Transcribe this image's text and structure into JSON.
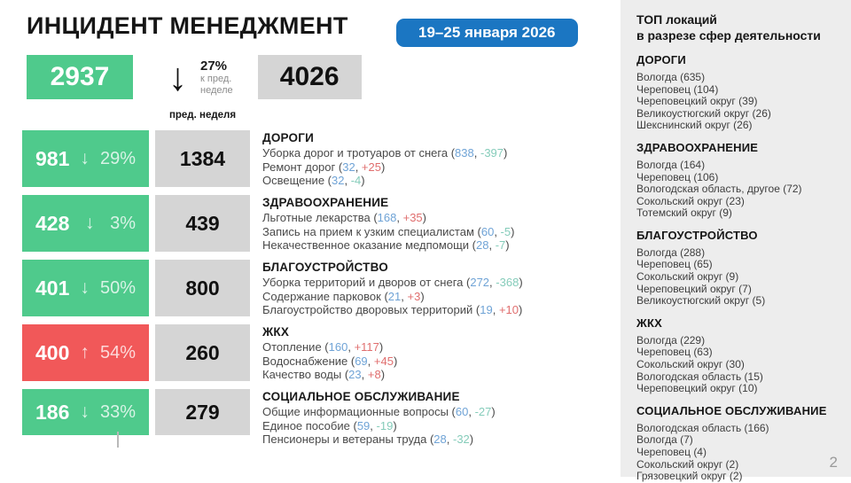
{
  "header": {
    "title": "ИНЦИДЕНТ МЕНЕДЖМЕНТ",
    "date_badge": "19–25 января 2026",
    "total_current": "2937",
    "total_direction": "down",
    "total_change_pct": "27%",
    "total_change_caption_line1": "к пред.",
    "total_change_caption_line2": "неделе",
    "total_prev": "4026",
    "prev_week_label": "пред. неделя"
  },
  "colors": {
    "accent_green": "#4fca8c",
    "accent_red": "#f15859",
    "prev_box_gray": "#d5d5d5",
    "badge_blue": "#1b76c2",
    "value_blue": "#6fa3d6",
    "delta_up_red": "#e06e6e",
    "delta_down_teal": "#85ccba",
    "sidebar_bg": "#ededed"
  },
  "categories": [
    {
      "name": "ДОРОГИ",
      "current": "981",
      "direction": "down",
      "pct": "29%",
      "prev": "1384",
      "items": [
        {
          "label": "Уборка дорог и тротуаров от снега",
          "value": "838",
          "delta": "-397"
        },
        {
          "label": "Ремонт дорог",
          "value": "32",
          "delta": "+25"
        },
        {
          "label": "Освещение",
          "value": "32",
          "delta": "-4"
        }
      ]
    },
    {
      "name": "ЗДРАВООХРАНЕНИЕ",
      "current": "428",
      "direction": "down",
      "pct": "3%",
      "prev": "439",
      "items": [
        {
          "label": "Льготные лекарства",
          "value": "168",
          "delta": "+35"
        },
        {
          "label": "Запись на прием к узким специалистам",
          "value": "60",
          "delta": "-5"
        },
        {
          "label": "Некачественное оказание медпомощи",
          "value": "28",
          "delta": "-7"
        }
      ]
    },
    {
      "name": "БЛАГОУСТРОЙСТВО",
      "current": "401",
      "direction": "down",
      "pct": "50%",
      "prev": "800",
      "items": [
        {
          "label": "Уборка территорий и дворов от снега",
          "value": "272",
          "delta": "-368"
        },
        {
          "label": "Содержание парковок",
          "value": "21",
          "delta": "+3"
        },
        {
          "label": "Благоустройство дворовых территорий",
          "value": "19",
          "delta": "+10"
        }
      ]
    },
    {
      "name": "ЖКХ",
      "current": "400",
      "direction": "up",
      "pct": "54%",
      "prev": "260",
      "items": [
        {
          "label": "Отопление",
          "value": "160",
          "delta": "+117"
        },
        {
          "label": "Водоснабжение",
          "value": "69",
          "delta": "+45"
        },
        {
          "label": "Качество воды",
          "value": "23",
          "delta": "+8"
        }
      ]
    },
    {
      "name": "СОЦИАЛЬНОЕ ОБСЛУЖИВАНИЕ",
      "current": "186",
      "direction": "down",
      "pct": "33%",
      "prev": "279",
      "items": [
        {
          "label": "Общие информационные вопросы",
          "value": "60",
          "delta": "-27"
        },
        {
          "label": "Единое пособие",
          "value": "59",
          "delta": "-19"
        },
        {
          "label": "Пенсионеры и ветераны труда",
          "value": "28",
          "delta": "-32"
        }
      ]
    }
  ],
  "sidebar": {
    "title_line1": "ТОП локаций",
    "title_line2": "в разрезе сфер деятельности",
    "sections": [
      {
        "name": "ДОРОГИ",
        "locations": [
          "Вологда (635)",
          "Череповец (104)",
          "Череповецкий округ (39)",
          "Великоустюгский округ (26)",
          "Шекснинский округ (26)"
        ]
      },
      {
        "name": "ЗДРАВООХРАНЕНИЕ",
        "locations": [
          "Вологда (164)",
          "Череповец (106)",
          "Вологодская область, другое (72)",
          "Сокольский округ (23)",
          "Тотемский округ (9)"
        ]
      },
      {
        "name": "БЛАГОУСТРОЙСТВО",
        "locations": [
          "Вологда (288)",
          "Череповец (65)",
          "Сокольский округ (9)",
          "Череповецкий округ (7)",
          "Великоустюгский округ (5)"
        ]
      },
      {
        "name": "ЖКХ",
        "locations": [
          "Вологда (229)",
          "Череповец (63)",
          "Сокольский округ (30)",
          "Вологодская область (15)",
          "Череповецкий округ (10)"
        ]
      },
      {
        "name": "СОЦИАЛЬНОЕ ОБСЛУЖИВАНИЕ",
        "locations": [
          "Вологодская область (166)",
          "Вологда (7)",
          "Череповец (4)",
          "Сокольский округ (2)",
          "Грязовецкий округ (2)"
        ]
      }
    ],
    "page_number": "2"
  }
}
